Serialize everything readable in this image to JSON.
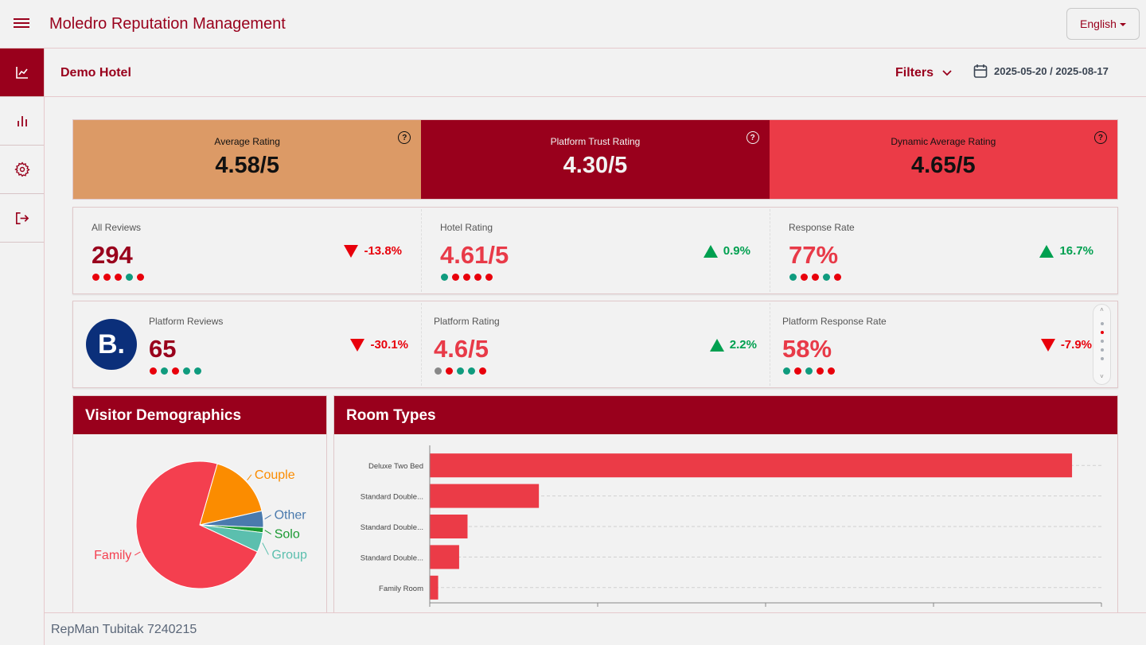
{
  "app": {
    "title": "Moledro Reputation Management",
    "language": "English"
  },
  "sidebar": {
    "items": [
      {
        "icon": "line-chart-icon",
        "active": true
      },
      {
        "icon": "bar-chart-icon",
        "active": false
      },
      {
        "icon": "gear-icon",
        "active": false
      },
      {
        "icon": "logout-icon",
        "active": false
      }
    ]
  },
  "subheader": {
    "hotel": "Demo Hotel",
    "filters_label": "Filters",
    "date_range": "2025-05-20 / 2025-08-17"
  },
  "ratings": [
    {
      "label": "Average Rating",
      "value": "4.58/5",
      "bg": "#dc9a66",
      "fg": "#111111"
    },
    {
      "label": "Platform Trust Rating",
      "value": "4.30/5",
      "bg": "#99001c",
      "fg": "#f2f2f2"
    },
    {
      "label": "Dynamic Average Rating",
      "value": "4.65/5",
      "bg": "#eb3b47",
      "fg": "#111111"
    }
  ],
  "stats": [
    {
      "label": "All Reviews",
      "value": "294",
      "delta": "-13.8%",
      "direction": "down",
      "value_color": "#99001c",
      "dots": [
        "#e8000b",
        "#e8000b",
        "#e8000b",
        "#0f9b7e",
        "#e8000b"
      ]
    },
    {
      "label": "Hotel Rating",
      "value": "4.61/5",
      "delta": "0.9%",
      "direction": "up",
      "value_color": "#e83a48",
      "dots": [
        "#0f9b7e",
        "#e8000b",
        "#e8000b",
        "#e8000b",
        "#e8000b"
      ]
    },
    {
      "label": "Response Rate",
      "value": "77%",
      "delta": "16.7%",
      "direction": "up",
      "value_color": "#e83a48",
      "dots": [
        "#0f9b7e",
        "#e8000b",
        "#e8000b",
        "#0f9b7e",
        "#e8000b"
      ]
    }
  ],
  "platform": {
    "logo_letter": "B.",
    "stats": [
      {
        "label": "Platform Reviews",
        "value": "65",
        "delta": "-30.1%",
        "direction": "down",
        "value_color": "#99001c",
        "dots": [
          "#e8000b",
          "#0f9b7e",
          "#e8000b",
          "#0f9b7e",
          "#0f9b7e"
        ]
      },
      {
        "label": "Platform Rating",
        "value": "4.6/5",
        "delta": "2.2%",
        "direction": "up",
        "value_color": "#e83a48",
        "dots": [
          "#888888",
          "#e8000b",
          "#0f9b7e",
          "#0f9b7e",
          "#e8000b"
        ]
      },
      {
        "label": "Platform Response Rate",
        "value": "58%",
        "delta": "-7.9%",
        "direction": "down",
        "value_color": "#e83a48",
        "dots": [
          "#0f9b7e",
          "#e8000b",
          "#0f9b7e",
          "#e8000b",
          "#e8000b"
        ]
      }
    ],
    "pager": {
      "up": "˄",
      "down": "˅",
      "dots": [
        "#aab0b8",
        "#e8000b",
        "#aab0b8",
        "#aab0b8",
        "#aab0b8"
      ]
    }
  },
  "colors": {
    "up": "#00a050",
    "down": "#e8000b",
    "brand": "#99001c"
  },
  "demographics": {
    "title": "Visitor Demographics"
  },
  "room_types": {
    "title": "Room Types"
  },
  "chart_data": [
    {
      "type": "pie",
      "title": "Visitor Demographics",
      "slices": [
        {
          "label": "Family",
          "value": 72.5,
          "color": "#f43f4f"
        },
        {
          "label": "Couple",
          "value": 17.0,
          "color": "#fb8c00"
        },
        {
          "label": "Other",
          "value": 4.2,
          "color": "#4a7aad"
        },
        {
          "label": "Solo",
          "value": 1.3,
          "color": "#1a9a32"
        },
        {
          "label": "Group",
          "value": 5.0,
          "color": "#5bbfae"
        }
      ]
    },
    {
      "type": "bar",
      "orientation": "horizontal",
      "title": "Room Types",
      "categories": [
        "Deluxe Two Bed",
        "Standard Double...",
        "Standard Double...",
        "Standard Double...",
        "Family Room"
      ],
      "values": [
        153,
        26,
        9,
        7,
        2
      ],
      "xlim": [
        0,
        160
      ],
      "grid": true,
      "color": "#eb3b47"
    }
  ],
  "footer": {
    "text": "RepMan Tubitak 7240215"
  }
}
